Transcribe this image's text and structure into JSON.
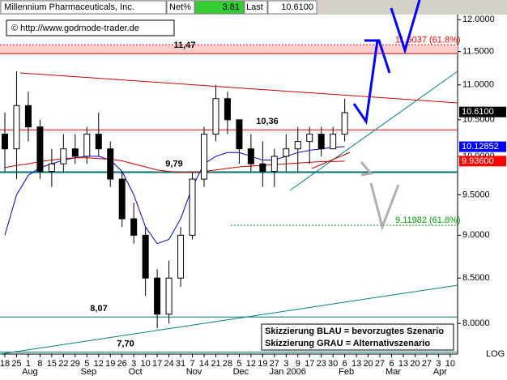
{
  "header": {
    "title": "Millennium Pharmaceuticals, Inc.",
    "net_label": "Net%",
    "net_value": "3.81",
    "last_label": "Last",
    "last_value": "10.6100"
  },
  "copyright": "© http://www.godmode-trader.de",
  "legend_note": [
    "Skizzierung BLAU = bevorzugtes Szenario",
    "Skizzierung GRAU = Alternativszenario"
  ],
  "chart_data": {
    "type": "candlestick",
    "log_scale": true,
    "scale_label": "LOG",
    "categories": [
      "18",
      "25",
      "1",
      "8",
      "15",
      "22",
      "29",
      "5",
      "12",
      "19",
      "26",
      "3",
      "10",
      "17",
      "24",
      "31",
      "7",
      "14",
      "21",
      "28",
      "5",
      "12",
      "19",
      "27",
      "3",
      "9",
      "17",
      "23",
      "30",
      "6",
      "13",
      "20",
      "27",
      "6",
      "13",
      "20",
      "27",
      "3",
      "10"
    ],
    "month_labels": [
      null,
      null,
      "Aug",
      null,
      null,
      null,
      null,
      "Sep",
      null,
      null,
      null,
      "Oct",
      null,
      null,
      null,
      null,
      "Nov",
      null,
      null,
      null,
      "Dec",
      null,
      null,
      null,
      "Jan 2006",
      null,
      null,
      null,
      null,
      "Feb",
      null,
      null,
      null,
      "Mar",
      null,
      null,
      null,
      "Apr",
      null
    ],
    "ylim": [
      7.68,
      12.32
    ],
    "yticks": [
      {
        "value": 8,
        "label": "8.0000"
      },
      {
        "value": 8.5,
        "label": "8.5000"
      },
      {
        "value": 9,
        "label": "9.0000"
      },
      {
        "value": 9.5,
        "label": "9.5000"
      },
      {
        "value": 10,
        "label": "10.0000"
      },
      {
        "value": 10.5,
        "label": "10.5000"
      },
      {
        "value": 11,
        "label": "11.0000"
      },
      {
        "value": 11.5,
        "label": "11.5000"
      },
      {
        "value": 12,
        "label": "12.0000"
      }
    ],
    "ohlc": {
      "open": [
        10.3,
        10.1,
        10.7,
        10.4,
        9.8,
        9.9,
        10.1,
        10.0,
        10.3,
        10.1,
        9.7,
        9.2,
        9.0,
        8.5,
        8.1,
        8.5,
        9.0,
        9.7,
        10.3,
        10.8,
        10.5,
        10.1,
        9.9,
        9.8,
        10.0,
        10.1,
        10.2,
        10.3,
        10.1,
        10.3,
        null,
        null,
        null,
        null,
        null,
        null,
        null,
        null,
        null
      ],
      "high": [
        10.6,
        11.2,
        10.9,
        10.5,
        10.1,
        10.3,
        10.3,
        10.4,
        10.6,
        10.2,
        9.8,
        9.4,
        9.1,
        8.6,
        8.7,
        9.1,
        9.8,
        10.4,
        11.0,
        10.9,
        10.5,
        10.3,
        10.2,
        10.1,
        10.3,
        10.4,
        10.4,
        10.4,
        10.4,
        10.8,
        null,
        null,
        null,
        null,
        null,
        null,
        null,
        null,
        null
      ],
      "low": [
        9.8,
        9.7,
        10.2,
        9.7,
        9.6,
        9.8,
        9.9,
        9.9,
        10.0,
        9.6,
        9.1,
        8.9,
        8.3,
        7.95,
        8.0,
        8.4,
        8.95,
        9.6,
        10.2,
        10.3,
        9.9,
        9.8,
        9.6,
        9.6,
        9.8,
        9.8,
        9.9,
        10.0,
        10.1,
        10.2,
        null,
        null,
        null,
        null,
        null,
        null,
        null,
        null,
        null
      ],
      "close": [
        10.1,
        10.7,
        10.4,
        9.8,
        9.9,
        10.1,
        10.0,
        10.3,
        10.1,
        9.7,
        9.2,
        9.0,
        8.5,
        8.1,
        8.5,
        9.0,
        9.7,
        10.3,
        10.8,
        10.5,
        10.1,
        9.9,
        9.8,
        10.0,
        10.1,
        10.2,
        10.3,
        10.1,
        10.3,
        10.6,
        null,
        null,
        null,
        null,
        null,
        null,
        null,
        null,
        null
      ]
    },
    "candle_color": "#000000",
    "series": [
      {
        "color": "#0000cc",
        "values": [
          9.0,
          9.5,
          9.75,
          9.85,
          9.9,
          9.95,
          9.98,
          10.0,
          10.0,
          9.95,
          9.8,
          9.5,
          9.1,
          8.9,
          8.95,
          9.2,
          9.6,
          9.9,
          10.0,
          10.05,
          10.05,
          10.0,
          9.95,
          9.95,
          10.0,
          10.05,
          10.08,
          10.1,
          10.12,
          10.13,
          null,
          null,
          null,
          null,
          null,
          null,
          null,
          null,
          null
        ]
      },
      {
        "color": "#cc0000",
        "values": [
          9.85,
          9.88,
          9.9,
          9.93,
          9.95,
          9.97,
          9.98,
          9.98,
          9.97,
          9.96,
          9.94,
          9.9,
          9.86,
          9.82,
          9.8,
          9.79,
          9.79,
          9.8,
          9.82,
          9.84,
          9.86,
          9.87,
          9.88,
          9.89,
          9.9,
          9.91,
          9.92,
          9.93,
          9.93,
          9.936,
          null,
          null,
          null,
          null,
          null,
          null,
          null,
          null,
          null
        ]
      }
    ],
    "levels": [
      {
        "value": 11.47,
        "label": "11,47",
        "color": "#e00000"
      },
      {
        "value": 10.36,
        "label": "10,36",
        "color": "#e00000"
      },
      {
        "value": 9.79,
        "label": "9,79",
        "color": "#007070"
      },
      {
        "value": 8.07,
        "label": "8,07",
        "color": "#007070"
      },
      {
        "value": 7.7,
        "label": "7,70",
        "color": "#007070"
      }
    ],
    "retracements": [
      {
        "value": 11.6037,
        "label": "11.6037 (61.8%)",
        "color": "#ff0000"
      },
      {
        "value": 9.11982,
        "label": "9.11982 (61.8%)",
        "color": "#00a000"
      }
    ],
    "price_tags": [
      {
        "value": 10.61,
        "label": "10.6100",
        "color": "#000000"
      },
      {
        "value": 10.12852,
        "label": "10.12852",
        "color": "#0000ff"
      },
      {
        "value": 9.936,
        "label": "9.93600",
        "color": "#ff0000"
      }
    ]
  }
}
